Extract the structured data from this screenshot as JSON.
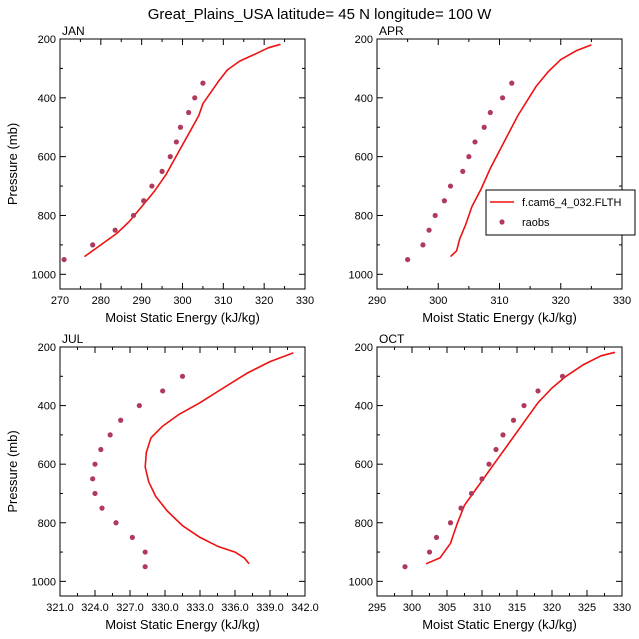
{
  "figure_title": "Great_Plains_USA  latitude= 45 N longitude= 100 W",
  "legend": {
    "model_label": "f.cam6_4_032.FLTH",
    "obs_label": "raobs"
  },
  "colors": {
    "model_line": "#ee1111",
    "obs_marker": "#b03a5b",
    "axes": "#000000"
  },
  "chart_data": [
    {
      "type": "line",
      "panel": "JAN",
      "xlabel": "Moist Static Energy (kJ/kg)",
      "ylabel": "Pressure (mb)",
      "xlim": [
        270,
        330
      ],
      "ylim": [
        1050,
        200
      ],
      "xticks": [
        270,
        280,
        290,
        300,
        310,
        320,
        330
      ],
      "xtick_labels": [
        "270",
        "280",
        "290",
        "300",
        "310",
        "320",
        "330"
      ],
      "yticks": [
        200,
        400,
        600,
        800,
        1000
      ],
      "ytick_labels": [
        "200",
        "400",
        "600",
        "800",
        "1000"
      ],
      "series": [
        {
          "name": "f.cam6_4_032.FLTH",
          "kind": "line",
          "points": [
            [
              276,
              940
            ],
            [
              280,
              900
            ],
            [
              284,
              860
            ],
            [
              287,
              820
            ],
            [
              290,
              770
            ],
            [
              293,
              720
            ],
            [
              296,
              660
            ],
            [
              298,
              610
            ],
            [
              300,
              560
            ],
            [
              302,
              510
            ],
            [
              304,
              460
            ],
            [
              305,
              420
            ],
            [
              307,
              380
            ],
            [
              309,
              340
            ],
            [
              311,
              305
            ],
            [
              314,
              275
            ],
            [
              318,
              250
            ],
            [
              321,
              230
            ],
            [
              324,
              218
            ]
          ]
        },
        {
          "name": "raobs",
          "kind": "scatter",
          "points": [
            [
              271,
              950
            ],
            [
              278,
              900
            ],
            [
              283.5,
              850
            ],
            [
              288,
              800
            ],
            [
              290.5,
              750
            ],
            [
              292.5,
              700
            ],
            [
              295,
              650
            ],
            [
              297,
              600
            ],
            [
              298.5,
              550
            ],
            [
              299.5,
              500
            ],
            [
              301.5,
              450
            ],
            [
              303,
              400
            ],
            [
              305,
              350
            ]
          ]
        }
      ]
    },
    {
      "type": "line",
      "panel": "APR",
      "xlabel": "Moist Static Energy (kJ/kg)",
      "ylabel": "",
      "xlim": [
        290,
        330
      ],
      "ylim": [
        1050,
        200
      ],
      "xticks": [
        290,
        300,
        310,
        320,
        330
      ],
      "xtick_labels": [
        "290",
        "300",
        "310",
        "320",
        "330"
      ],
      "yticks": [
        200,
        400,
        600,
        800,
        1000
      ],
      "ytick_labels": [
        "200",
        "400",
        "600",
        "800",
        "1000"
      ],
      "series": [
        {
          "name": "f.cam6_4_032.FLTH",
          "kind": "line",
          "points": [
            [
              302,
              940
            ],
            [
              303,
              920
            ],
            [
              303.5,
              880
            ],
            [
              304.5,
              830
            ],
            [
              305.5,
              770
            ],
            [
              307,
              710
            ],
            [
              308.5,
              640
            ],
            [
              310,
              580
            ],
            [
              311.5,
              520
            ],
            [
              313,
              460
            ],
            [
              314.5,
              410
            ],
            [
              316,
              360
            ],
            [
              318,
              310
            ],
            [
              320,
              270
            ],
            [
              322.5,
              240
            ],
            [
              325,
              220
            ]
          ]
        },
        {
          "name": "raobs",
          "kind": "scatter",
          "points": [
            [
              295,
              950
            ],
            [
              297.5,
              900
            ],
            [
              298.5,
              850
            ],
            [
              299.5,
              800
            ],
            [
              301,
              750
            ],
            [
              302,
              700
            ],
            [
              304,
              650
            ],
            [
              305,
              600
            ],
            [
              306,
              550
            ],
            [
              307.5,
              500
            ],
            [
              308.5,
              450
            ],
            [
              310.5,
              400
            ],
            [
              312,
              350
            ]
          ]
        }
      ]
    },
    {
      "type": "line",
      "panel": "JUL",
      "xlabel": "Moist Static Energy (kJ/kg)",
      "ylabel": "Pressure (mb)",
      "xlim": [
        321,
        342
      ],
      "ylim": [
        1050,
        200
      ],
      "xticks": [
        321,
        324,
        327,
        330,
        333,
        336,
        339,
        342
      ],
      "xtick_labels": [
        "321.0",
        "324.0",
        "327.0",
        "330.0",
        "333.0",
        "336.0",
        "339.0",
        "342.0"
      ],
      "yticks": [
        200,
        400,
        600,
        800,
        1000
      ],
      "ytick_labels": [
        "200",
        "400",
        "600",
        "800",
        "1000"
      ],
      "series": [
        {
          "name": "f.cam6_4_032.FLTH",
          "kind": "line",
          "points": [
            [
              337.2,
              940
            ],
            [
              336.8,
              920
            ],
            [
              336,
              900
            ],
            [
              334.5,
              880
            ],
            [
              333,
              850
            ],
            [
              331.5,
              810
            ],
            [
              330.2,
              760
            ],
            [
              329.2,
              710
            ],
            [
              328.6,
              660
            ],
            [
              328.3,
              610
            ],
            [
              328.4,
              560
            ],
            [
              328.8,
              510
            ],
            [
              329.8,
              470
            ],
            [
              331.2,
              430
            ],
            [
              333,
              390
            ],
            [
              335,
              340
            ],
            [
              337,
              290
            ],
            [
              339,
              250
            ],
            [
              341,
              220
            ]
          ]
        },
        {
          "name": "raobs",
          "kind": "scatter",
          "points": [
            [
              328.3,
              950
            ],
            [
              328.3,
              900
            ],
            [
              327.2,
              850
            ],
            [
              325.8,
              800
            ],
            [
              324.6,
              750
            ],
            [
              324.0,
              700
            ],
            [
              323.8,
              650
            ],
            [
              324.0,
              600
            ],
            [
              324.5,
              550
            ],
            [
              325.3,
              500
            ],
            [
              326.2,
              450
            ],
            [
              327.8,
              400
            ],
            [
              329.8,
              350
            ],
            [
              331.5,
              300
            ]
          ]
        }
      ]
    },
    {
      "type": "line",
      "panel": "OCT",
      "xlabel": "Moist Static Energy (kJ/kg)",
      "ylabel": "",
      "xlim": [
        295,
        330
      ],
      "ylim": [
        1050,
        200
      ],
      "xticks": [
        295,
        300,
        305,
        310,
        315,
        320,
        325,
        330
      ],
      "xtick_labels": [
        "295",
        "300",
        "305",
        "310",
        "315",
        "320",
        "325",
        "330"
      ],
      "yticks": [
        200,
        400,
        600,
        800,
        1000
      ],
      "ytick_labels": [
        "200",
        "400",
        "600",
        "800",
        "1000"
      ],
      "series": [
        {
          "name": "f.cam6_4_032.FLTH",
          "kind": "line",
          "points": [
            [
              302,
              940
            ],
            [
              304,
              920
            ],
            [
              305.5,
              870
            ],
            [
              306.5,
              800
            ],
            [
              307.5,
              740
            ],
            [
              309,
              690
            ],
            [
              310.5,
              640
            ],
            [
              312,
              590
            ],
            [
              313.5,
              540
            ],
            [
              315,
              490
            ],
            [
              316.5,
              440
            ],
            [
              318,
              390
            ],
            [
              320,
              340
            ],
            [
              322,
              300
            ],
            [
              324.5,
              260
            ],
            [
              327,
              230
            ],
            [
              329,
              218
            ]
          ]
        },
        {
          "name": "raobs",
          "kind": "scatter",
          "points": [
            [
              299,
              950
            ],
            [
              302.5,
              900
            ],
            [
              303.5,
              850
            ],
            [
              305.5,
              800
            ],
            [
              307,
              750
            ],
            [
              308.5,
              700
            ],
            [
              310,
              650
            ],
            [
              311,
              600
            ],
            [
              312,
              550
            ],
            [
              313,
              500
            ],
            [
              314.5,
              450
            ],
            [
              316,
              400
            ],
            [
              318,
              350
            ],
            [
              321.5,
              300
            ]
          ]
        }
      ]
    }
  ]
}
